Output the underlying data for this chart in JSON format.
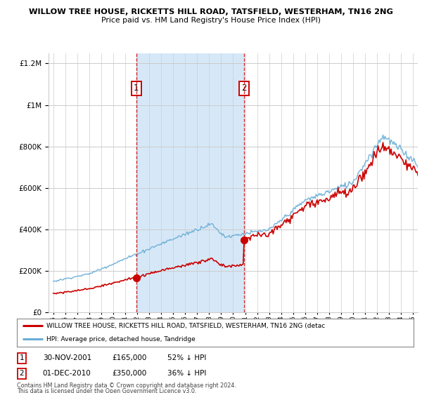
{
  "title1": "WILLOW TREE HOUSE, RICKETTS HILL ROAD, TATSFIELD, WESTERHAM, TN16 2NG",
  "title2": "Price paid vs. HM Land Registry's House Price Index (HPI)",
  "sale1_year": 2001.92,
  "sale1_price": 165000,
  "sale1_label": "1",
  "sale1_date": "30-NOV-2001",
  "sale1_pct": "52% ↓ HPI",
  "sale2_year": 2010.92,
  "sale2_price": 350000,
  "sale2_label": "2",
  "sale2_date": "01-DEC-2010",
  "sale2_pct": "36% ↓ HPI",
  "legend_red": "WILLOW TREE HOUSE, RICKETTS HILL ROAD, TATSFIELD, WESTERHAM, TN16 2NG (detac",
  "legend_blue": "HPI: Average price, detached house, Tandridge",
  "footnote1": "Contains HM Land Registry data © Crown copyright and database right 2024.",
  "footnote2": "This data is licensed under the Open Government Licence v3.0.",
  "hpi_color": "#6baed6",
  "price_color": "#cc0000",
  "vline_color": "#cc0000",
  "shade_color": "#d6e8f7",
  "ylim_max": 1250000,
  "background_color": "#ffffff",
  "plot_bg_color": "#ffffff",
  "grid_color": "#cccccc"
}
